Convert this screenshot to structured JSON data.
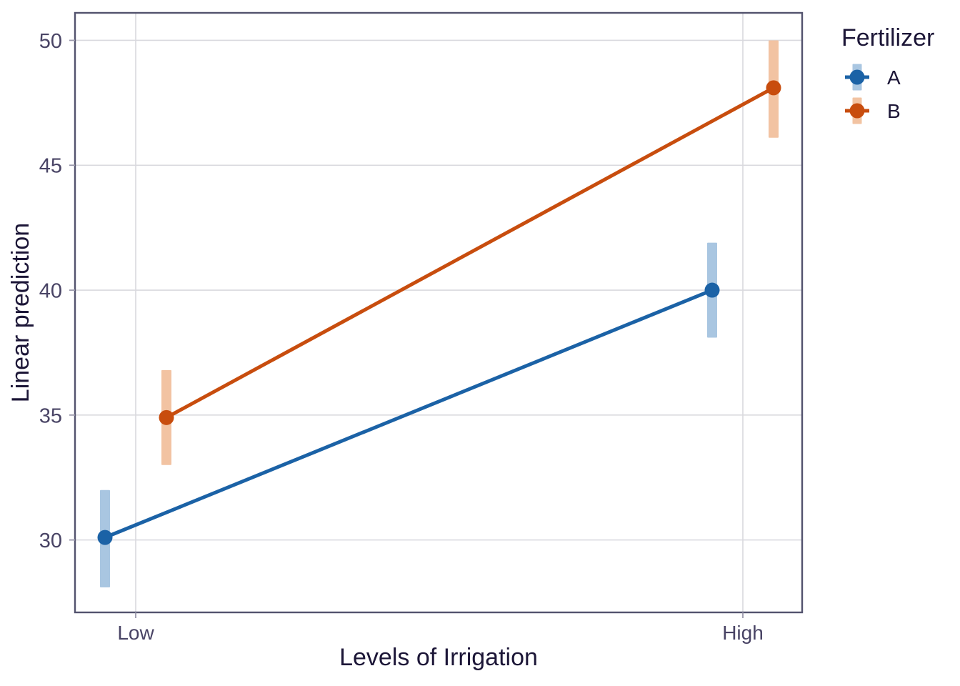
{
  "chart_data": {
    "type": "line",
    "title": "",
    "xlabel": "Levels of Irrigation",
    "ylabel": "Linear prediction",
    "x_categories": [
      "Low",
      "High"
    ],
    "yticks": [
      30,
      35,
      40,
      45,
      50
    ],
    "ylim": [
      27.1,
      51.1
    ],
    "grid": true,
    "error_bars": "confidence-interval-bands",
    "legend": {
      "title": "Fertilizer",
      "position": "right",
      "entries": [
        "A",
        "B"
      ]
    },
    "series": [
      {
        "name": "A",
        "color": "#1B62A6",
        "ci_color": "#A9C6E1",
        "values": [
          30.1,
          40.0
        ],
        "ci_low": [
          28.1,
          38.1
        ],
        "ci_high": [
          32.0,
          41.9
        ]
      },
      {
        "name": "B",
        "color": "#C84D0E",
        "ci_color": "#F2C3A2",
        "values": [
          34.9,
          48.1
        ],
        "ci_low": [
          33.0,
          46.1
        ],
        "ci_high": [
          36.8,
          50.0
        ]
      }
    ]
  },
  "style": {
    "text_dark": "#1C1637",
    "text_axis": "#494465",
    "panel_border": "#53536E",
    "gridline": "#D9D9DE",
    "tick": "#9A98AB",
    "background": "#FFFFFF"
  }
}
